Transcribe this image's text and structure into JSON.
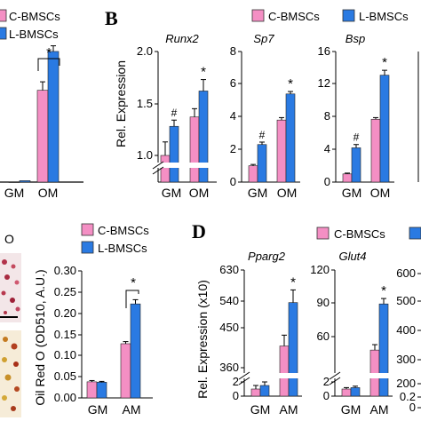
{
  "colors": {
    "c": "#f48fc4",
    "l": "#2a7ae2"
  },
  "legend_c": "C-BMSCs",
  "legend_l": "L-BMSCs",
  "panel_labels": {
    "b": "B",
    "d": "D"
  },
  "oil_prefix": "O",
  "chart_data": [
    {
      "id": "A_partial",
      "type": "bar",
      "categories": [
        "GM",
        "OM"
      ],
      "series": [
        {
          "name": "C-BMSCs",
          "values": [
            0.0,
            1.3
          ],
          "errors": [
            0.0,
            0.12
          ]
        },
        {
          "name": "L-BMSCs",
          "values": [
            0.02,
            1.85
          ],
          "errors": [
            0.0,
            0.08
          ]
        }
      ],
      "ylim": [
        0,
        2.0
      ],
      "annotations": [
        "*"
      ]
    },
    {
      "id": "B_runx2",
      "type": "bar",
      "title": "Runx2",
      "ylabel": "Rel. Expression",
      "categories": [
        "GM",
        "OM"
      ],
      "series": [
        {
          "name": "C-BMSCs",
          "values": [
            1.0,
            1.37
          ],
          "errors": [
            0.13,
            0.08
          ]
        },
        {
          "name": "L-BMSCs",
          "values": [
            1.28,
            1.62
          ],
          "errors": [
            0.06,
            0.11
          ]
        }
      ],
      "yticks": [
        "1.0",
        "1.5",
        "2.0"
      ],
      "ylim": [
        0.9,
        2.0
      ],
      "axis_break": true,
      "annotations": [
        "#",
        "*"
      ]
    },
    {
      "id": "B_sp7",
      "type": "bar",
      "title": "Sp7",
      "categories": [
        "GM",
        "OM"
      ],
      "series": [
        {
          "name": "C-BMSCs",
          "values": [
            1.0,
            3.8
          ],
          "errors": [
            0.08,
            0.15
          ]
        },
        {
          "name": "L-BMSCs",
          "values": [
            2.3,
            5.4
          ],
          "errors": [
            0.15,
            0.15
          ]
        }
      ],
      "yticks": [
        "0",
        "2",
        "4",
        "6",
        "8"
      ],
      "ylim": [
        0,
        8
      ],
      "annotations": [
        "#",
        "*"
      ]
    },
    {
      "id": "B_bsp",
      "type": "bar",
      "title": "Bsp",
      "categories": [
        "GM",
        "OM"
      ],
      "series": [
        {
          "name": "C-BMSCs",
          "values": [
            1.0,
            7.7
          ],
          "errors": [
            0.1,
            0.2
          ]
        },
        {
          "name": "L-BMSCs",
          "values": [
            4.2,
            13.1
          ],
          "errors": [
            0.4,
            0.6
          ]
        }
      ],
      "yticks": [
        "0",
        "4",
        "8",
        "12",
        "16"
      ],
      "ylim": [
        0,
        16
      ],
      "annotations": [
        "#",
        "*"
      ]
    },
    {
      "id": "C_oilredo",
      "type": "bar",
      "ylabel": "Oil Red O (OD510, A.U.)",
      "categories": [
        "GM",
        "AM"
      ],
      "series": [
        {
          "name": "C-BMSCs",
          "values": [
            0.038,
            0.128
          ],
          "errors": [
            0.003,
            0.005
          ]
        },
        {
          "name": "L-BMSCs",
          "values": [
            0.037,
            0.222
          ],
          "errors": [
            0.002,
            0.01
          ]
        }
      ],
      "yticks": [
        "0.00",
        "0.05",
        "0.10",
        "0.15",
        "0.20",
        "0.25",
        "0.30"
      ],
      "ylim": [
        0,
        0.3
      ],
      "annotations": [
        "*"
      ]
    },
    {
      "id": "D_pparg2",
      "type": "bar",
      "title": "Pparg2",
      "ylabel": "Rel. Expression (x10)",
      "categories": [
        "GM",
        "AM"
      ],
      "series": [
        {
          "name": "C-BMSCs",
          "values": [
            1.0,
            420
          ],
          "errors": [
            0.5,
            30
          ]
        },
        {
          "name": "L-BMSCs",
          "values": [
            1.5,
            540
          ],
          "errors": [
            0.5,
            35
          ]
        }
      ],
      "yticks": [
        "0",
        "2",
        "360",
        "450",
        "540",
        "630"
      ],
      "axis_break": true,
      "annotations": [
        "*"
      ]
    },
    {
      "id": "D_glut4",
      "type": "bar",
      "title": "Glut4",
      "categories": [
        "GM",
        "AM"
      ],
      "series": [
        {
          "name": "C-BMSCs",
          "values": [
            1.0,
            61
          ],
          "errors": [
            0.2,
            4
          ]
        },
        {
          "name": "L-BMSCs",
          "values": [
            1.2,
            95
          ],
          "errors": [
            0.2,
            4
          ]
        }
      ],
      "yticks": [
        "0",
        "2",
        "60",
        "90",
        "120"
      ],
      "axis_break": true,
      "annotations": [
        "*"
      ]
    },
    {
      "id": "D_partial",
      "type": "bar",
      "yticks": [
        "600",
        "500",
        "400",
        "300",
        "200",
        "0.2",
        "0"
      ]
    }
  ]
}
